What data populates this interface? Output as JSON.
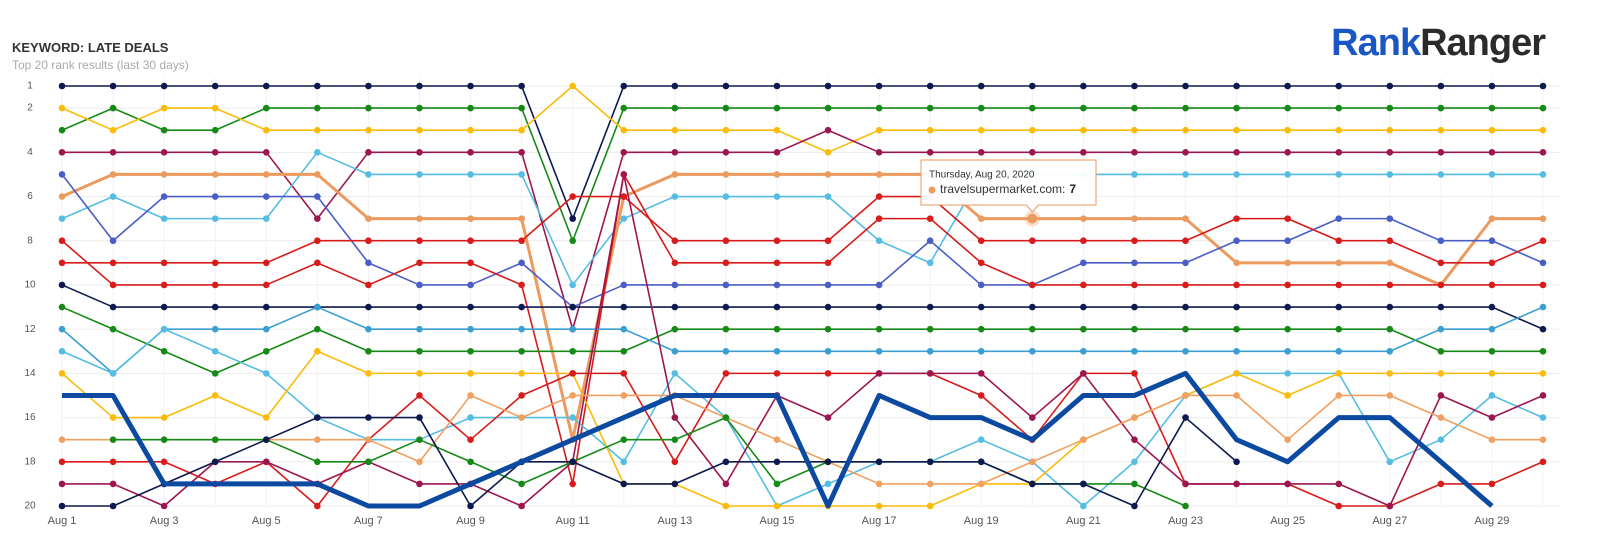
{
  "header": {
    "title": "KEYWORD: LATE DEALS",
    "subtitle": "Top 20 rank results (last 30 days)",
    "logo": [
      "Rank",
      "Ranger"
    ]
  },
  "chart_data": {
    "type": "line",
    "categories": [
      "Aug 1",
      null,
      "Aug 3",
      null,
      "Aug 5",
      null,
      "Aug 7",
      null,
      "Aug 9",
      null,
      "Aug 11",
      null,
      "Aug 13",
      null,
      "Aug 15",
      null,
      "Aug 17",
      null,
      "Aug 19",
      null,
      "Aug 21",
      null,
      "Aug 23",
      null,
      "Aug 25",
      null,
      "Aug 27",
      null,
      "Aug 29",
      null
    ],
    "ylim": [
      1,
      20
    ],
    "y_inverted": true,
    "yticks": [
      1,
      2,
      4,
      6,
      8,
      10,
      12,
      14,
      16,
      18,
      20
    ],
    "grid": true,
    "series": [
      {
        "color": "#0d1a4f",
        "values": [
          1,
          1,
          1,
          1,
          1,
          1,
          1,
          1,
          1,
          1,
          7,
          1,
          1,
          1,
          1,
          1,
          1,
          1,
          1,
          1,
          1,
          1,
          1,
          1,
          1,
          1,
          1,
          1,
          1,
          1
        ]
      },
      {
        "color": "#168a16",
        "values": [
          3,
          2,
          3,
          3,
          2,
          2,
          2,
          2,
          2,
          2,
          8,
          2,
          2,
          2,
          2,
          2,
          2,
          2,
          2,
          2,
          2,
          2,
          2,
          2,
          2,
          2,
          2,
          2,
          2,
          2
        ]
      },
      {
        "color": "#fbbb0a",
        "values": [
          2,
          3,
          2,
          2,
          3,
          3,
          3,
          3,
          3,
          3,
          1,
          3,
          3,
          3,
          3,
          4,
          3,
          3,
          3,
          3,
          3,
          3,
          3,
          3,
          3,
          3,
          3,
          3,
          3,
          3
        ]
      },
      {
        "color": "#9c1750",
        "values": [
          4,
          4,
          4,
          4,
          4,
          7,
          4,
          4,
          4,
          4,
          12,
          4,
          4,
          4,
          4,
          3,
          4,
          4,
          4,
          4,
          4,
          4,
          4,
          4,
          4,
          4,
          4,
          4,
          4,
          4
        ]
      },
      {
        "color": "#55bde3",
        "values": [
          7,
          6,
          7,
          7,
          7,
          4,
          5,
          5,
          5,
          5,
          10,
          7,
          6,
          6,
          6,
          6,
          8,
          9,
          5,
          5,
          5,
          5,
          5,
          5,
          5,
          5,
          5,
          5,
          5,
          5
        ]
      },
      {
        "color": "#ec9a5e",
        "width": 3,
        "values": [
          6,
          5,
          5,
          5,
          5,
          5,
          7,
          7,
          7,
          7,
          17,
          6,
          5,
          5,
          5,
          5,
          5,
          5,
          7,
          7,
          7,
          7,
          7,
          9,
          9,
          9,
          9,
          10,
          7,
          7
        ]
      },
      {
        "color": "#4a5ec6",
        "values": [
          5,
          8,
          6,
          6,
          6,
          6,
          9,
          10,
          10,
          9,
          11,
          10,
          10,
          10,
          10,
          10,
          10,
          8,
          10,
          10,
          9,
          9,
          9,
          8,
          8,
          7,
          7,
          8,
          8,
          9
        ]
      },
      {
        "color": "#d81b1b",
        "values": [
          8,
          10,
          10,
          10,
          10,
          9,
          10,
          9,
          9,
          10,
          19,
          5,
          9,
          9,
          9,
          9,
          7,
          7,
          9,
          10,
          10,
          10,
          10,
          10,
          10,
          10,
          10,
          10,
          10,
          10
        ]
      },
      {
        "color": "#d81b1b",
        "values": [
          9,
          9,
          9,
          9,
          9,
          8,
          8,
          8,
          8,
          8,
          6,
          6,
          8,
          8,
          8,
          8,
          6,
          6,
          8,
          8,
          8,
          8,
          8,
          7,
          7,
          8,
          8,
          9,
          9,
          8
        ]
      },
      {
        "color": "#0d1a4f",
        "values": [
          10,
          11,
          11,
          11,
          11,
          11,
          11,
          11,
          11,
          11,
          11,
          11,
          11,
          11,
          11,
          11,
          11,
          11,
          11,
          11,
          11,
          11,
          11,
          11,
          11,
          11,
          11,
          11,
          11,
          12
        ]
      },
      {
        "color": "#168a16",
        "values": [
          11,
          12,
          13,
          14,
          13,
          12,
          13,
          13,
          13,
          13,
          13,
          13,
          12,
          12,
          12,
          12,
          12,
          12,
          12,
          12,
          12,
          12,
          12,
          12,
          12,
          12,
          12,
          13,
          13,
          13
        ]
      },
      {
        "color": "#3b9fd2",
        "values": [
          12,
          14,
          12,
          12,
          12,
          11,
          12,
          12,
          12,
          12,
          12,
          12,
          13,
          13,
          13,
          13,
          13,
          13,
          13,
          13,
          13,
          13,
          13,
          13,
          13,
          13,
          13,
          12,
          12,
          11
        ]
      },
      {
        "color": "#55bde3",
        "values": [
          13,
          14,
          12,
          13,
          14,
          16,
          17,
          17,
          16,
          16,
          16,
          18,
          14,
          16,
          20,
          19,
          18,
          18,
          17,
          18,
          20,
          18,
          15,
          14,
          14,
          14,
          18,
          17,
          15,
          16
        ]
      },
      {
        "color": "#fbbb0a",
        "values": [
          14,
          16,
          16,
          15,
          16,
          13,
          14,
          14,
          14,
          14,
          14,
          19,
          19,
          20,
          20,
          20,
          20,
          20,
          19,
          19,
          17,
          16,
          15,
          14,
          15,
          14,
          14,
          14,
          14,
          14
        ]
      },
      {
        "color": "#d81b1b",
        "values": [
          18,
          18,
          18,
          19,
          18,
          20,
          17,
          15,
          17,
          15,
          14,
          14,
          18,
          14,
          14,
          14,
          14,
          14,
          15,
          17,
          14,
          14,
          19,
          19,
          19,
          20,
          20,
          19,
          19,
          18
        ]
      },
      {
        "color": "#9c1750",
        "values": [
          19,
          19,
          20,
          18,
          18,
          19,
          18,
          19,
          19,
          20,
          18,
          5,
          16,
          19,
          15,
          16,
          14,
          14,
          14,
          16,
          14,
          17,
          19,
          19,
          19,
          19,
          20,
          15,
          16,
          15
        ]
      },
      {
        "color": "#f0a060",
        "values": [
          17,
          17,
          17,
          17,
          17,
          17,
          17,
          18,
          15,
          16,
          15,
          15,
          15,
          16,
          17,
          18,
          19,
          19,
          19,
          18,
          17,
          16,
          15,
          15,
          17,
          15,
          15,
          16,
          17,
          17
        ]
      },
      {
        "color": "#168a16",
        "values": [
          null,
          17,
          17,
          17,
          17,
          18,
          18,
          17,
          18,
          19,
          18,
          17,
          17,
          16,
          19,
          18,
          18,
          18,
          18,
          19,
          19,
          19,
          20,
          null,
          null,
          null,
          null,
          null,
          null,
          null
        ]
      },
      {
        "color": "#0d1a4f",
        "values": [
          20,
          20,
          19,
          18,
          17,
          16,
          16,
          16,
          20,
          18,
          18,
          19,
          19,
          18,
          18,
          18,
          18,
          18,
          18,
          19,
          19,
          20,
          16,
          18,
          null,
          null,
          null,
          null,
          null,
          null
        ]
      },
      {
        "color": "#0b4aa0",
        "width": 5,
        "markers": false,
        "values": [
          15,
          15,
          19,
          19,
          19,
          19,
          20,
          20,
          19,
          18,
          17,
          16,
          15,
          15,
          15,
          20,
          15,
          16,
          16,
          17,
          15,
          15,
          14,
          17,
          18,
          16,
          16,
          18,
          20,
          null
        ]
      }
    ],
    "tooltip": {
      "date": "Thursday, Aug 20, 2020",
      "label": "travelsupermarket.com:",
      "series": 5,
      "index": 19
    }
  }
}
